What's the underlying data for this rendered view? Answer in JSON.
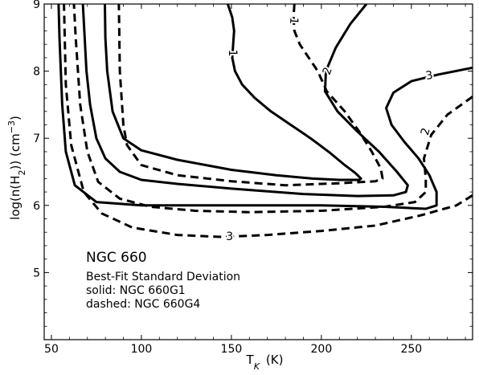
{
  "chart_data": {
    "type": "line",
    "title": "",
    "xlabel": {
      "main": "T",
      "sub": "K",
      "unit": "(K)"
    },
    "ylabel": {
      "prefix": "log(n(H",
      "sub": "2",
      "mid": ")) (cm",
      "sup": "−3",
      "suffix": ")"
    },
    "xlim": [
      46,
      284
    ],
    "ylim": [
      4.0,
      9.0
    ],
    "x_ticks": [
      "50",
      "100",
      "150",
      "200",
      "250"
    ],
    "y_ticks": [
      "5",
      "6",
      "7",
      "8",
      "9"
    ],
    "grid": false,
    "legend": "none",
    "annotations": {
      "title": "NGC 660",
      "lines": [
        "Best-Fit Standard Deviation",
        "solid: NGC 660G1",
        "dashed: NGC 660G4"
      ]
    },
    "series": [
      {
        "style": "solid",
        "level": "1",
        "points": [
          [
            148,
            9.0
          ],
          [
            150.5,
            8.8
          ],
          [
            151.5,
            8.6
          ],
          [
            151,
            8.4
          ],
          [
            150.5,
            8.2
          ],
          [
            152,
            8.0
          ],
          [
            156,
            7.8
          ],
          [
            163,
            7.6
          ],
          [
            172,
            7.4
          ],
          [
            183,
            7.2
          ],
          [
            194,
            7.0
          ],
          [
            204,
            6.8
          ],
          [
            213,
            6.6
          ],
          [
            219,
            6.48
          ],
          [
            222,
            6.4
          ],
          [
            221,
            6.38
          ],
          [
            210,
            6.38
          ],
          [
            195,
            6.4
          ],
          [
            175,
            6.45
          ],
          [
            150,
            6.53
          ],
          [
            120,
            6.68
          ],
          [
            100,
            6.82
          ],
          [
            90,
            7.0
          ],
          [
            84,
            7.4
          ],
          [
            81,
            8.0
          ],
          [
            80,
            8.5
          ],
          [
            79.7,
            9.0
          ]
        ]
      },
      {
        "style": "solid",
        "level": "2",
        "points": [
          [
            225,
            9.0
          ],
          [
            216,
            8.7
          ],
          [
            208,
            8.35
          ],
          [
            202.5,
            8.0
          ],
          [
            202,
            7.7
          ],
          [
            209,
            7.4
          ],
          [
            220,
            7.1
          ],
          [
            232,
            6.8
          ],
          [
            242,
            6.5
          ],
          [
            248,
            6.3
          ],
          [
            247,
            6.2
          ],
          [
            240,
            6.15
          ],
          [
            220,
            6.14
          ],
          [
            190,
            6.17
          ],
          [
            150,
            6.25
          ],
          [
            120,
            6.32
          ],
          [
            100,
            6.38
          ],
          [
            88,
            6.5
          ],
          [
            80,
            6.7
          ],
          [
            75,
            7.0
          ],
          [
            71.5,
            7.5
          ],
          [
            69.5,
            8.0
          ],
          [
            67.5,
            9.0
          ]
        ]
      },
      {
        "style": "solid",
        "level": "3",
        "points": [
          [
            284,
            8.05
          ],
          [
            265,
            7.95
          ],
          [
            250,
            7.85
          ],
          [
            240,
            7.68
          ],
          [
            236,
            7.45
          ],
          [
            239,
            7.2
          ],
          [
            246,
            6.95
          ],
          [
            254,
            6.7
          ],
          [
            260,
            6.45
          ],
          [
            264,
            6.2
          ],
          [
            264,
            6.0
          ],
          [
            258,
            5.95
          ],
          [
            235,
            5.98
          ],
          [
            200,
            6.0
          ],
          [
            150,
            6.0
          ],
          [
            100,
            6.0
          ],
          [
            75,
            6.05
          ],
          [
            63,
            6.3
          ],
          [
            58,
            6.8
          ],
          [
            56,
            7.5
          ],
          [
            54.5,
            8.5
          ],
          [
            54,
            9.0
          ]
        ]
      },
      {
        "style": "dashed",
        "level": "1",
        "points": [
          [
            185,
            9.0
          ],
          [
            184.5,
            8.8
          ],
          [
            185,
            8.6
          ],
          [
            188,
            8.4
          ],
          [
            193,
            8.2
          ],
          [
            198,
            8.0
          ],
          [
            203,
            7.7
          ],
          [
            213,
            7.4
          ],
          [
            221,
            7.1
          ],
          [
            228,
            6.8
          ],
          [
            233,
            6.55
          ],
          [
            234,
            6.4
          ],
          [
            230,
            6.36
          ],
          [
            210,
            6.33
          ],
          [
            180,
            6.3
          ],
          [
            150,
            6.36
          ],
          [
            120,
            6.45
          ],
          [
            100,
            6.6
          ],
          [
            92,
            6.9
          ],
          [
            90,
            7.2
          ],
          [
            88,
            8.0
          ],
          [
            87.5,
            9.0
          ]
        ]
      },
      {
        "style": "dashed",
        "level": "2",
        "points": [
          [
            284,
            7.62
          ],
          [
            270,
            7.35
          ],
          [
            261,
            7.05
          ],
          [
            257,
            6.7
          ],
          [
            258,
            6.4
          ],
          [
            258,
            6.2
          ],
          [
            252,
            6.05
          ],
          [
            235,
            5.98
          ],
          [
            200,
            5.92
          ],
          [
            160,
            5.9
          ],
          [
            130,
            5.92
          ],
          [
            105,
            5.98
          ],
          [
            88,
            6.1
          ],
          [
            76,
            6.35
          ],
          [
            70,
            6.8
          ],
          [
            66,
            7.5
          ],
          [
            63.5,
            8.5
          ],
          [
            62.5,
            9.0
          ]
        ]
      },
      {
        "style": "dashed",
        "level": "3",
        "points": [
          [
            284,
            6.15
          ],
          [
            275,
            6.0
          ],
          [
            255,
            5.85
          ],
          [
            230,
            5.7
          ],
          [
            200,
            5.62
          ],
          [
            170,
            5.56
          ],
          [
            145,
            5.53
          ],
          [
            120,
            5.56
          ],
          [
            95,
            5.67
          ],
          [
            78,
            5.88
          ],
          [
            68,
            6.2
          ],
          [
            61,
            6.9
          ],
          [
            58,
            7.8
          ],
          [
            57,
            9.0
          ]
        ]
      }
    ],
    "contour_labels": [
      {
        "text": "1",
        "x": 150.5,
        "y": 8.27,
        "angle": 90
      },
      {
        "text": "2",
        "x": 203.5,
        "y": 8.0,
        "angle": -70
      },
      {
        "text": "3",
        "x": 260,
        "y": 7.93,
        "angle": -10
      },
      {
        "text": "1",
        "x": 184.5,
        "y": 8.75,
        "angle": 95
      },
      {
        "text": "2",
        "x": 258,
        "y": 7.1,
        "angle": -75
      },
      {
        "text": "3",
        "x": 149,
        "y": 5.53,
        "angle": 0
      }
    ]
  }
}
